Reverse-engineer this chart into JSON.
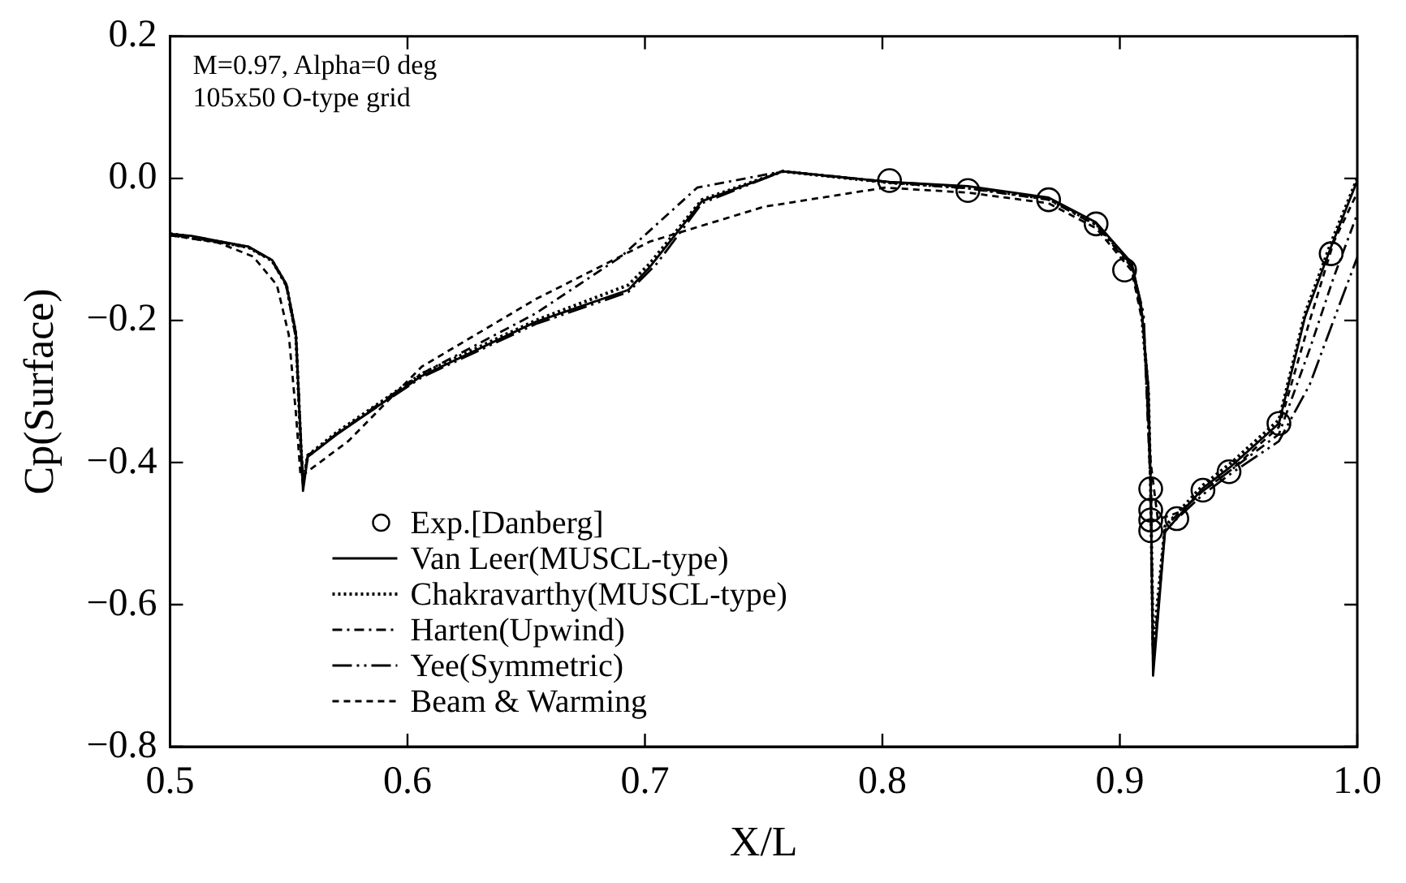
{
  "chart_data": {
    "type": "line",
    "xlabel": "X/L",
    "ylabel": "Cp(Surface)",
    "annotations": [
      "M=0.97, Alpha=0 deg",
      "105x50 O-type grid"
    ],
    "xlim": [
      0.5,
      1.0
    ],
    "xticks": [
      0.5,
      0.6,
      0.7,
      0.8,
      0.9,
      {
        "value": 1.0,
        "label": "1.0"
      }
    ],
    "ylim": [
      -0.8,
      0.2
    ],
    "yticks": [
      {
        "value": -0.8,
        "label": "−0.8"
      },
      {
        "value": -0.6,
        "label": "−0.6"
      },
      {
        "value": -0.4,
        "label": "−0.4"
      },
      {
        "value": -0.2,
        "label": "−0.2"
      },
      {
        "value": 0,
        "label": "0.0"
      },
      0.2
    ],
    "grid": false,
    "legend": "bottom left",
    "series": [
      {
        "name": "Exp.[Danberg]",
        "type": "scatter",
        "marker": "circle",
        "color": "#000000",
        "x": [
          0.803,
          0.836,
          0.87,
          0.89,
          0.902,
          0.913,
          0.913,
          0.913,
          0.913,
          0.924,
          0.935,
          0.946,
          0.967,
          0.989
        ],
        "values": [
          -0.003,
          -0.017,
          -0.03,
          -0.064,
          -0.129,
          -0.437,
          -0.467,
          -0.481,
          -0.496,
          -0.479,
          -0.439,
          -0.413,
          -0.345,
          -0.106
        ]
      },
      {
        "name": "Van Leer(MUSCL-type)",
        "type": "line",
        "line_style": "solid",
        "color": "#000000",
        "x": [
          0.5,
          0.509,
          0.533,
          0.543,
          0.549,
          0.553,
          0.555,
          0.556,
          0.558,
          0.57,
          0.606,
          0.654,
          0.693,
          0.702,
          0.724,
          0.758,
          0.803,
          0.836,
          0.87,
          0.89,
          0.905,
          0.909,
          0.912,
          0.913,
          0.914,
          0.919,
          0.935,
          0.947,
          0.967,
          0.978,
          0.989,
          1.0
        ],
        "values": [
          -0.078,
          -0.081,
          -0.096,
          -0.115,
          -0.149,
          -0.217,
          -0.369,
          -0.44,
          -0.392,
          -0.361,
          -0.278,
          -0.202,
          -0.157,
          -0.125,
          -0.032,
          0.01,
          -0.005,
          -0.011,
          -0.027,
          -0.062,
          -0.119,
          -0.18,
          -0.293,
          -0.429,
          -0.7,
          -0.498,
          -0.436,
          -0.405,
          -0.345,
          -0.195,
          -0.096,
          -0.003
        ]
      },
      {
        "name": "Chakravarthy(MUSCL-type)",
        "type": "line",
        "line_style": "dotted",
        "color": "#000000",
        "x": [
          0.5,
          0.509,
          0.533,
          0.543,
          0.549,
          0.553,
          0.555,
          0.556,
          0.558,
          0.57,
          0.606,
          0.654,
          0.693,
          0.702,
          0.724,
          0.758,
          0.803,
          0.836,
          0.87,
          0.89,
          0.905,
          0.909,
          0.912,
          0.913,
          0.914,
          0.919,
          0.935,
          0.947,
          0.967,
          0.978,
          0.989,
          1.0
        ],
        "values": [
          -0.078,
          -0.082,
          -0.097,
          -0.116,
          -0.15,
          -0.22,
          -0.37,
          -0.43,
          -0.39,
          -0.358,
          -0.275,
          -0.2,
          -0.15,
          -0.12,
          -0.03,
          0.01,
          -0.006,
          -0.013,
          -0.029,
          -0.064,
          -0.121,
          -0.185,
          -0.3,
          -0.44,
          -0.66,
          -0.49,
          -0.432,
          -0.4,
          -0.34,
          -0.19,
          -0.09,
          0.0
        ]
      },
      {
        "name": "Harten(Upwind)",
        "type": "line",
        "line_style": "dashdot",
        "color": "#000000",
        "x": [
          0.5,
          0.533,
          0.543,
          0.549,
          0.553,
          0.556,
          0.558,
          0.57,
          0.606,
          0.654,
          0.69,
          0.722,
          0.758,
          0.803,
          0.836,
          0.87,
          0.89,
          0.905,
          0.91,
          0.913,
          0.914,
          0.919,
          0.935,
          0.947,
          0.967,
          0.98,
          0.99,
          1.0
        ],
        "values": [
          -0.08,
          -0.097,
          -0.116,
          -0.152,
          -0.225,
          -0.43,
          -0.392,
          -0.36,
          -0.275,
          -0.19,
          -0.11,
          -0.013,
          0.01,
          -0.006,
          -0.014,
          -0.03,
          -0.066,
          -0.125,
          -0.2,
          -0.44,
          -0.68,
          -0.49,
          -0.44,
          -0.41,
          -0.36,
          -0.24,
          -0.14,
          -0.05
        ]
      },
      {
        "name": "Yee(Symmetric)",
        "type": "line",
        "line_style": "longdashdot",
        "color": "#000000",
        "x": [
          0.5,
          0.533,
          0.543,
          0.549,
          0.553,
          0.556,
          0.558,
          0.57,
          0.606,
          0.654,
          0.693,
          0.705,
          0.724,
          0.758,
          0.803,
          0.836,
          0.87,
          0.89,
          0.905,
          0.91,
          0.913,
          0.914,
          0.919,
          0.935,
          0.947,
          0.967,
          0.98,
          0.99,
          1.0
        ],
        "values": [
          -0.079,
          -0.096,
          -0.115,
          -0.15,
          -0.22,
          -0.43,
          -0.39,
          -0.36,
          -0.28,
          -0.205,
          -0.16,
          -0.12,
          -0.035,
          0.01,
          -0.005,
          -0.012,
          -0.028,
          -0.063,
          -0.122,
          -0.19,
          -0.43,
          -0.69,
          -0.495,
          -0.445,
          -0.415,
          -0.37,
          -0.29,
          -0.2,
          -0.111
        ]
      },
      {
        "name": "Beam & Warming",
        "type": "line",
        "line_style": "dashed",
        "color": "#000000",
        "x": [
          0.5,
          0.52,
          0.535,
          0.545,
          0.55,
          0.553,
          0.555,
          0.575,
          0.606,
          0.654,
          0.702,
          0.75,
          0.801,
          0.836,
          0.87,
          0.89,
          0.905,
          0.91,
          0.913,
          0.916,
          0.925,
          0.935,
          0.947,
          0.967,
          0.98,
          0.99,
          1.0
        ],
        "values": [
          -0.08,
          -0.09,
          -0.11,
          -0.15,
          -0.22,
          -0.33,
          -0.42,
          -0.37,
          -0.265,
          -0.17,
          -0.089,
          -0.04,
          -0.013,
          -0.02,
          -0.035,
          -0.07,
          -0.13,
          -0.21,
          -0.4,
          -0.48,
          -0.47,
          -0.44,
          -0.41,
          -0.35,
          -0.2,
          -0.09,
          -0.02
        ]
      }
    ]
  }
}
